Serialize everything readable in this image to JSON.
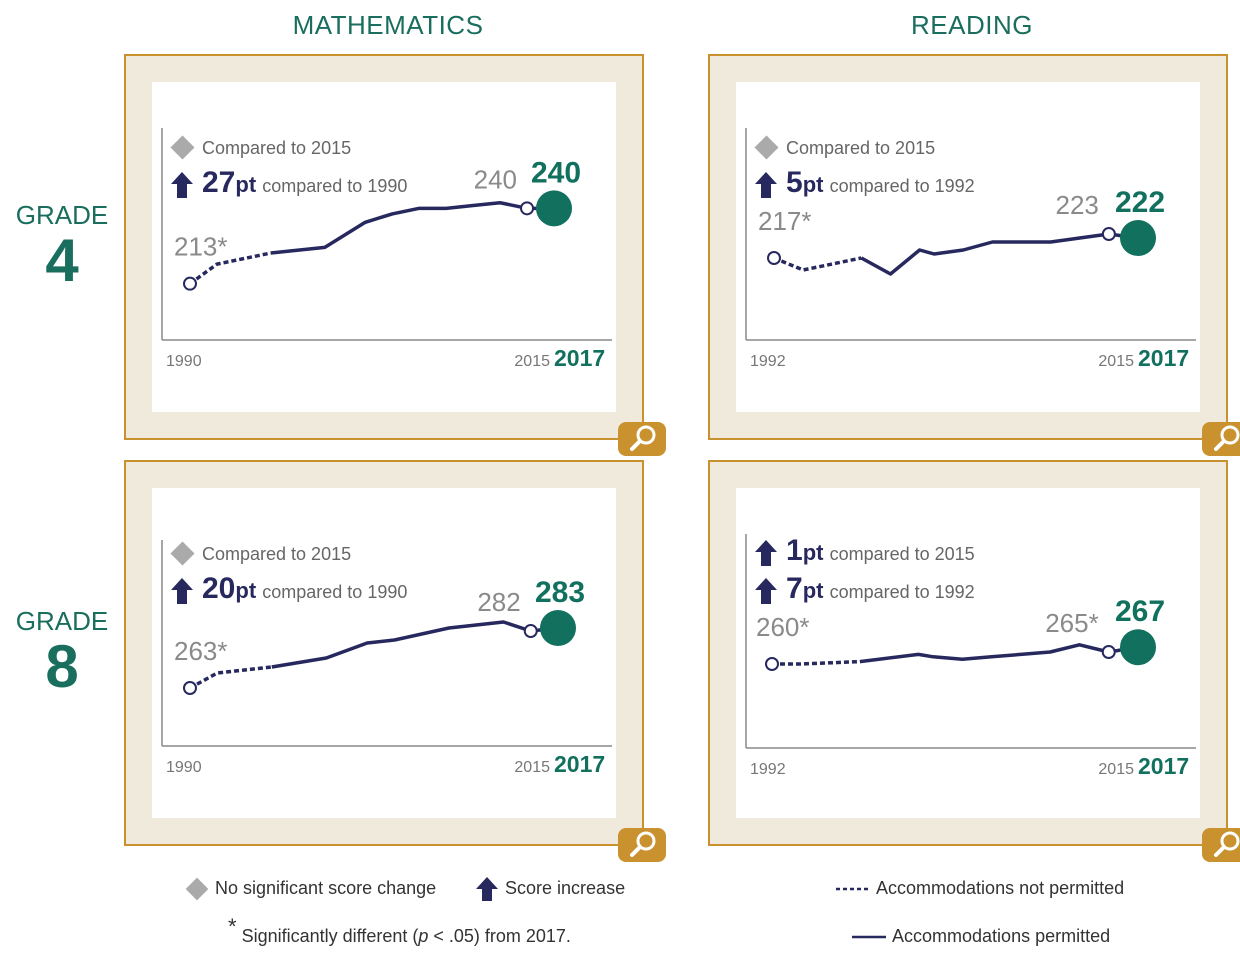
{
  "subjects": [
    "MATHEMATICS",
    "READING"
  ],
  "grades": [
    {
      "label": "GRADE",
      "number": "4"
    },
    {
      "label": "GRADE",
      "number": "8"
    }
  ],
  "panels": [
    {
      "id": "math-g4",
      "summary": [
        {
          "icon": "diamond",
          "value": "",
          "unit": "",
          "text": "Compared to 2015"
        },
        {
          "icon": "arrow-up",
          "value": "27",
          "unit": "pt",
          "text": "compared to 1990"
        }
      ],
      "start_year": "1990",
      "prev_year": "2015",
      "end_year": "2017",
      "start_label": "213*",
      "prev_label": "240",
      "end_label": "240"
    },
    {
      "id": "reading-g4",
      "summary": [
        {
          "icon": "diamond",
          "value": "",
          "unit": "",
          "text": "Compared to 2015"
        },
        {
          "icon": "arrow-up",
          "value": "5",
          "unit": "pt",
          "text": "compared to 1992"
        }
      ],
      "start_year": "1992",
      "prev_year": "2015",
      "end_year": "2017",
      "start_label": "217*",
      "prev_label": "223",
      "end_label": "222"
    },
    {
      "id": "math-g8",
      "summary": [
        {
          "icon": "diamond",
          "value": "",
          "unit": "",
          "text": "Compared to 2015"
        },
        {
          "icon": "arrow-up",
          "value": "20",
          "unit": "pt",
          "text": "compared to 1990"
        }
      ],
      "start_year": "1990",
      "prev_year": "2015",
      "end_year": "2017",
      "start_label": "263*",
      "prev_label": "282",
      "end_label": "283"
    },
    {
      "id": "reading-g8",
      "summary": [
        {
          "icon": "arrow-up",
          "value": "1",
          "unit": "pt",
          "text": "compared to 2015"
        },
        {
          "icon": "arrow-up",
          "value": "7",
          "unit": "pt",
          "text": "compared to 1992"
        }
      ],
      "start_year": "1992",
      "prev_year": "2015",
      "end_year": "2017",
      "start_label": "260*",
      "prev_label": "265*",
      "end_label": "267"
    }
  ],
  "legend": {
    "no_change": "No significant score change",
    "increase": "Score increase",
    "asterisk": "*",
    "footnote_pre": "Significantly different (",
    "footnote_p": "p",
    "footnote_post": " < .05) from 2017.",
    "not_permitted": "Accommodations not permitted",
    "permitted": "Accommodations permitted"
  },
  "colors": {
    "navy": "#27295e",
    "teal": "#12705e",
    "gray": "#8a8a8a",
    "gold": "#c9922f",
    "frame_bg": "#efeadc"
  },
  "chart_data": [
    {
      "type": "line",
      "title": "MATHEMATICS — GRADE 4",
      "x": [
        1990,
        1992,
        1996,
        2000,
        2003,
        2005,
        2007,
        2009,
        2011,
        2013,
        2015,
        2017
      ],
      "series": [
        {
          "values": [
            213,
            220,
            224,
            226,
            235,
            238,
            240,
            240,
            241,
            242,
            240,
            240
          ]
        }
      ],
      "not_permitted_through": 1996
    },
    {
      "type": "line",
      "title": "READING — GRADE 4",
      "x": [
        1992,
        1994,
        1998,
        2000,
        2002,
        2003,
        2005,
        2007,
        2009,
        2011,
        2013,
        2015,
        2017
      ],
      "series": [
        {
          "values": [
            217,
            214,
            217,
            213,
            219,
            218,
            219,
            221,
            221,
            221,
            222,
            223,
            222
          ]
        }
      ],
      "not_permitted_through": 1998
    },
    {
      "type": "line",
      "title": "MATHEMATICS — GRADE 8",
      "x": [
        1990,
        1992,
        1996,
        2000,
        2003,
        2005,
        2007,
        2009,
        2011,
        2013,
        2015,
        2017
      ],
      "series": [
        {
          "values": [
            263,
            268,
            270,
            273,
            278,
            279,
            281,
            283,
            284,
            285,
            282,
            283
          ]
        }
      ],
      "not_permitted_through": 1996
    },
    {
      "type": "line",
      "title": "READING — GRADE 8",
      "x": [
        1992,
        1994,
        1998,
        2002,
        2003,
        2005,
        2007,
        2009,
        2011,
        2013,
        2015,
        2017
      ],
      "series": [
        {
          "values": [
            260,
            260,
            261,
            264,
            263,
            262,
            263,
            264,
            265,
            268,
            265,
            267
          ]
        }
      ],
      "not_permitted_through": 1998
    }
  ]
}
